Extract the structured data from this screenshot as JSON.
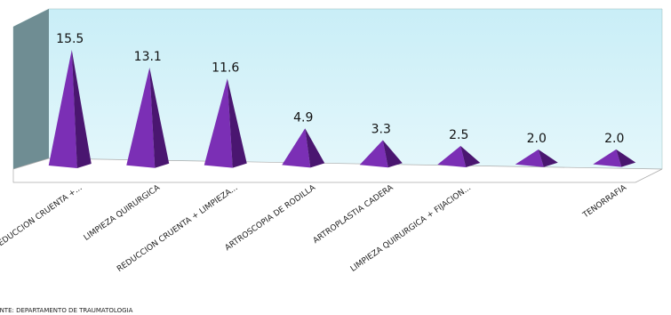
{
  "chart_data": {
    "type": "pyramid",
    "categories": [
      "REDUCCION CRUENTA +...",
      "LIMPIEZA QUIRURGICA",
      "REDUCCION CRUENTA + LIMPIEZA...",
      "ARTROSCOPIA DE RODILLA",
      "ARTROPLASTIA CADERA",
      "LIMPIEZA QUIRURGICA + FIJACION...",
      null,
      "TENORRAFIA"
    ],
    "values": [
      15.5,
      13.1,
      11.6,
      4.9,
      3.3,
      2.5,
      2.0,
      2.0
    ],
    "value_labels": [
      "15.5",
      "13.1",
      "11.6",
      "4.9",
      "3.3",
      "2.5",
      "2.0",
      "2.0"
    ],
    "color": "#7b2fb5",
    "source": "FUENTE: DEPARTAMENTO DE TRAUMATOLOGIA"
  }
}
